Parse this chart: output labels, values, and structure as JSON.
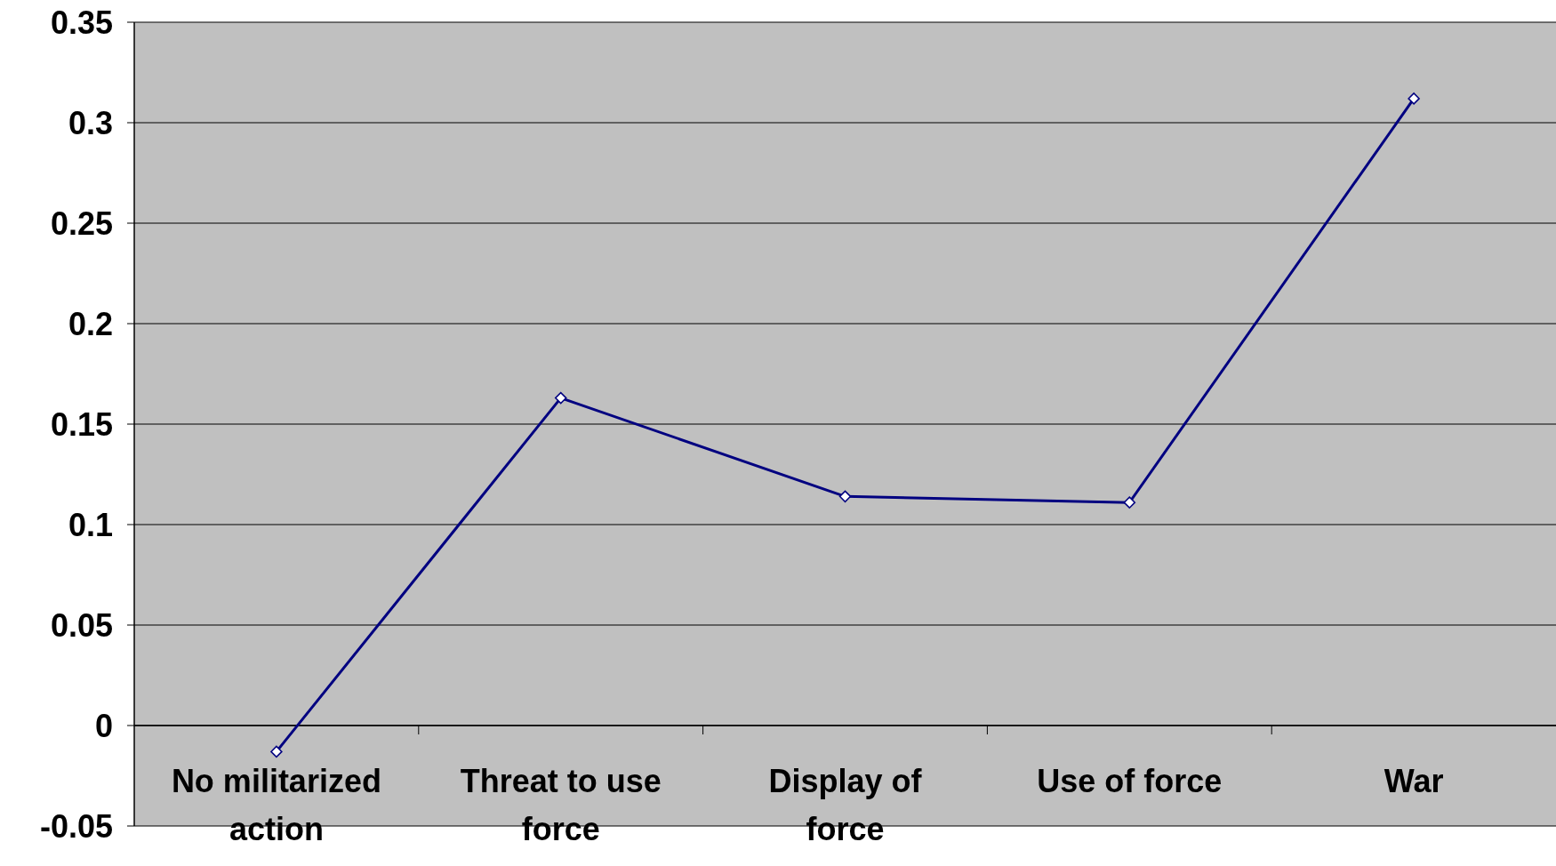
{
  "chart_data": {
    "type": "line",
    "categories": [
      "No militarized action",
      "Threat to use force",
      "Display of force",
      "Use of force",
      "War"
    ],
    "series": [
      {
        "color": "#000080",
        "values": [
          -0.013,
          0.163,
          0.114,
          0.111,
          0.312
        ]
      }
    ],
    "ylim": [
      -0.05,
      0.35
    ],
    "yticks": [
      -0.05,
      0,
      0.05,
      0.1,
      0.15,
      0.2,
      0.25,
      0.3,
      0.35
    ],
    "grid": "y",
    "marker": "diamond",
    "line_style": "solid"
  }
}
